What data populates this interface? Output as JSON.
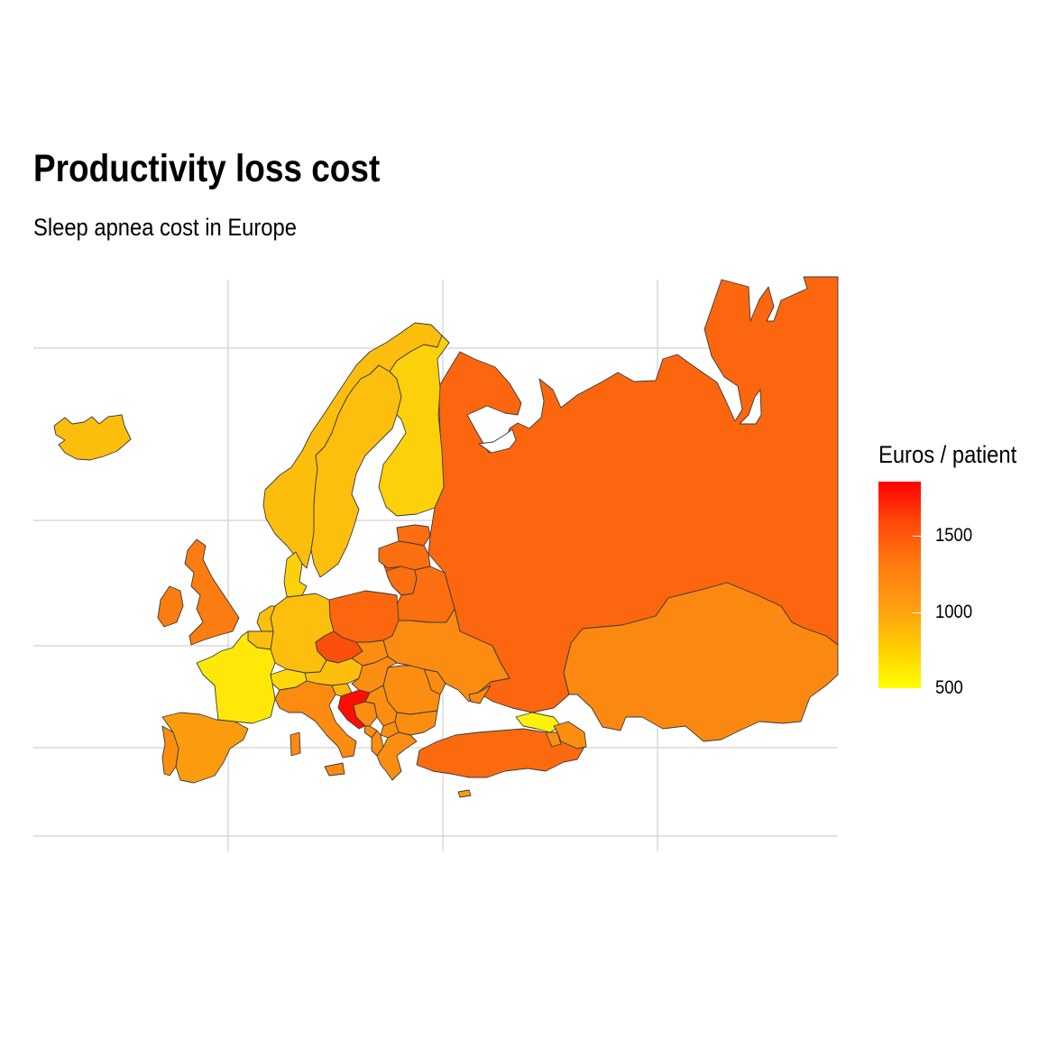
{
  "title": "Productivity loss cost",
  "subtitle": "Sleep apnea cost in Europe",
  "legend": {
    "title": "Euros / patient",
    "ticks": [
      "1500",
      "1000",
      "500"
    ],
    "colors": {
      "low": "#ffff00",
      "mid": "#ff9f10",
      "high": "#ff0000"
    }
  },
  "colors": {
    "border": "#3a3a3a",
    "gridline": "#d0d0d0",
    "background": "#ffffff"
  }
}
